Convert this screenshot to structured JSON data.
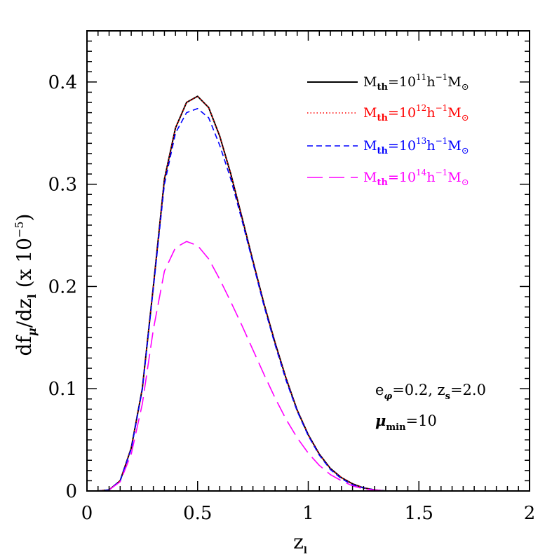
{
  "chart_data": {
    "type": "line",
    "xlabel": "z",
    "xlabel_sub": "l",
    "ylabel": {
      "p1": "df",
      "p1_sub": "μ",
      "p2": "/dz",
      "p2_sub": "l",
      "p3": " (x 10",
      "p3_sup": "−5",
      "p4": ")"
    },
    "xlim": [
      0,
      2
    ],
    "ylim": [
      0,
      0.45
    ],
    "xticks": [
      0,
      0.5,
      1,
      1.5,
      2
    ],
    "xtick_labels": [
      "0",
      "0.5",
      "1",
      "1.5",
      "2"
    ],
    "yticks": [
      0,
      0.1,
      0.2,
      0.3,
      0.4
    ],
    "ytick_labels": [
      "0",
      "0.1",
      "0.2",
      "0.3",
      "0.4"
    ],
    "x": [
      0,
      0.05,
      0.1,
      0.15,
      0.2,
      0.25,
      0.3,
      0.35,
      0.4,
      0.45,
      0.5,
      0.55,
      0.6,
      0.65,
      0.7,
      0.75,
      0.8,
      0.85,
      0.9,
      0.95,
      1.0,
      1.05,
      1.1,
      1.15,
      1.2,
      1.25,
      1.3,
      1.35,
      1.4,
      1.45,
      1.5,
      1.6,
      1.7,
      1.8,
      1.9,
      2.0
    ],
    "series": [
      {
        "name": "M_th=10^11 h^-1 M_sun",
        "color": "#000000",
        "dash": "solid",
        "values": [
          0,
          0,
          0.001,
          0.01,
          0.042,
          0.1,
          0.2,
          0.305,
          0.355,
          0.38,
          0.386,
          0.375,
          0.347,
          0.31,
          0.268,
          0.225,
          0.183,
          0.145,
          0.11,
          0.079,
          0.055,
          0.036,
          0.022,
          0.013,
          0.007,
          0.003,
          0.001,
          0,
          0,
          0,
          0,
          0,
          0,
          0,
          0,
          0
        ]
      },
      {
        "name": "M_th=10^12 h^-1 M_sun",
        "color": "#ff0000",
        "dash": "dotted",
        "values": [
          0,
          0,
          0.001,
          0.01,
          0.042,
          0.1,
          0.2,
          0.305,
          0.355,
          0.38,
          0.386,
          0.375,
          0.347,
          0.31,
          0.268,
          0.225,
          0.183,
          0.145,
          0.11,
          0.079,
          0.055,
          0.036,
          0.022,
          0.013,
          0.007,
          0.003,
          0.001,
          0,
          0,
          0,
          0,
          0,
          0,
          0,
          0,
          0
        ]
      },
      {
        "name": "M_th=10^13 h^-1 M_sun",
        "color": "#0000ff",
        "dash": "dashed",
        "values": [
          0,
          0,
          0.001,
          0.01,
          0.041,
          0.099,
          0.198,
          0.3,
          0.35,
          0.37,
          0.374,
          0.365,
          0.338,
          0.305,
          0.265,
          0.223,
          0.181,
          0.143,
          0.108,
          0.078,
          0.054,
          0.035,
          0.021,
          0.012,
          0.006,
          0.003,
          0.001,
          0,
          0,
          0,
          0,
          0,
          0,
          0,
          0,
          0
        ]
      },
      {
        "name": "M_th=10^14 h^-1 M_sun",
        "color": "#ff00ff",
        "dash": "long-dashed",
        "values": [
          0,
          0,
          0.001,
          0.009,
          0.036,
          0.085,
          0.158,
          0.215,
          0.238,
          0.244,
          0.24,
          0.227,
          0.207,
          0.185,
          0.162,
          0.138,
          0.114,
          0.091,
          0.07,
          0.052,
          0.037,
          0.025,
          0.016,
          0.01,
          0.005,
          0.002,
          0.001,
          0,
          0,
          0,
          0,
          0,
          0,
          0,
          0,
          0
        ]
      }
    ],
    "legend_placement": "top-right",
    "grid": false
  },
  "legend": [
    {
      "m": "M",
      "th": "th",
      "eq": "=10",
      "exp": "11",
      "h": "h",
      "hexp": "−1",
      "msun": "M",
      "sun": "⊙"
    },
    {
      "m": "M",
      "th": "th",
      "eq": "=10",
      "exp": "12",
      "h": "h",
      "hexp": "−1",
      "msun": "M",
      "sun": "⊙"
    },
    {
      "m": "M",
      "th": "th",
      "eq": "=10",
      "exp": "13",
      "h": "h",
      "hexp": "−1",
      "msun": "M",
      "sun": "⊙"
    },
    {
      "m": "M",
      "th": "th",
      "eq": "=10",
      "exp": "14",
      "h": "h",
      "hexp": "−1",
      "msun": "M",
      "sun": "⊙"
    }
  ],
  "annotations": {
    "line1": {
      "e": "e",
      "e_sub": "φ",
      "e_val": "=0.2,  z",
      "zs_sub": "s",
      "zs_val": "=2.0"
    },
    "line2": {
      "mu": "μ",
      "mu_sub": "min",
      "mu_val": "=10"
    }
  }
}
